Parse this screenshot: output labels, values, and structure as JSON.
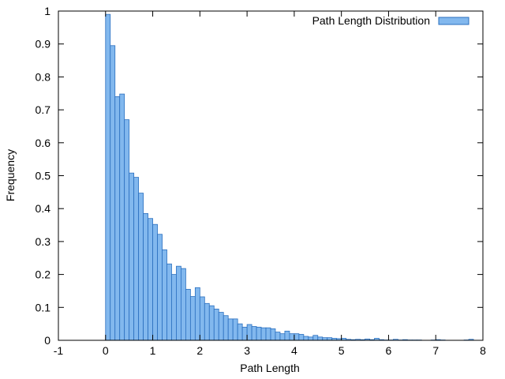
{
  "chart_data": {
    "type": "bar",
    "xlabel": "Path Length",
    "ylabel": "Frequency",
    "xlim": [
      -1,
      8
    ],
    "ylim": [
      0,
      1
    ],
    "x_ticks": [
      -1,
      0,
      1,
      2,
      3,
      4,
      5,
      6,
      7,
      8
    ],
    "x_tick_labels": [
      "-1",
      "0",
      "1",
      "2",
      "3",
      "4",
      "5",
      "6",
      "7",
      "8"
    ],
    "y_ticks": [
      0,
      0.1,
      0.2,
      0.3,
      0.4,
      0.5,
      0.6,
      0.7,
      0.8,
      0.9,
      1
    ],
    "y_tick_labels": [
      "0",
      "0.1",
      "0.2",
      "0.3",
      "0.4",
      "0.5",
      "0.6",
      "0.7",
      "0.8",
      "0.9",
      "1"
    ],
    "grid": false,
    "legend_position": "top-right",
    "bin_width": 0.1,
    "series": [
      {
        "name": "Path Length Distribution",
        "color": "#82b8ee",
        "edge_color": "#2a6fbf",
        "bins_start": [
          0,
          0.1,
          0.2,
          0.3,
          0.4,
          0.5,
          0.6,
          0.7,
          0.8,
          0.9,
          1.0,
          1.1,
          1.2,
          1.3,
          1.4,
          1.5,
          1.6,
          1.7,
          1.8,
          1.9,
          2.0,
          2.1,
          2.2,
          2.3,
          2.4,
          2.5,
          2.6,
          2.7,
          2.8,
          2.9,
          3.0,
          3.1,
          3.2,
          3.3,
          3.4,
          3.5,
          3.6,
          3.7,
          3.8,
          3.9,
          4.0,
          4.1,
          4.2,
          4.3,
          4.4,
          4.5,
          4.6,
          4.7,
          4.8,
          4.9,
          5.0,
          5.1,
          5.2,
          5.3,
          5.4,
          5.5,
          5.6,
          5.7,
          5.8,
          5.9,
          6.0,
          6.1,
          6.2,
          6.3,
          6.4,
          6.5,
          6.6,
          6.7,
          6.8,
          6.9,
          7.0,
          7.1,
          7.2,
          7.3,
          7.4,
          7.5,
          7.6,
          7.7
        ],
        "values": [
          0.99,
          0.895,
          0.74,
          0.748,
          0.67,
          0.508,
          0.495,
          0.447,
          0.385,
          0.37,
          0.352,
          0.322,
          0.275,
          0.232,
          0.2,
          0.225,
          0.218,
          0.155,
          0.133,
          0.16,
          0.132,
          0.112,
          0.105,
          0.095,
          0.085,
          0.075,
          0.065,
          0.065,
          0.05,
          0.04,
          0.048,
          0.042,
          0.04,
          0.038,
          0.038,
          0.035,
          0.025,
          0.02,
          0.028,
          0.02,
          0.02,
          0.018,
          0.012,
          0.01,
          0.015,
          0.01,
          0.008,
          0.008,
          0.006,
          0.005,
          0.006,
          0.003,
          0.002,
          0.003,
          0.002,
          0.004,
          0.002,
          0.006,
          0.002,
          0.001,
          0.001,
          0.003,
          0.001,
          0.002,
          0.001,
          0.001,
          0.001,
          0,
          0,
          0.001,
          0.002,
          0.001,
          0,
          0,
          0,
          0,
          0.001,
          0.003
        ]
      }
    ]
  }
}
